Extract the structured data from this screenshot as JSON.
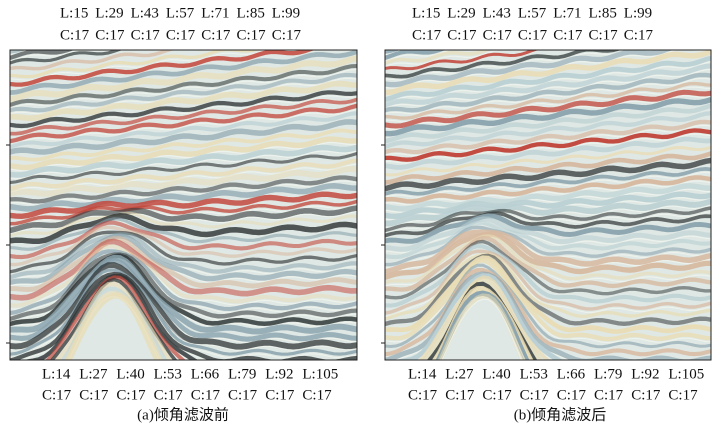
{
  "panels": [
    {
      "top_l_labels": [
        "L:15",
        "L:29",
        "L:43",
        "L:57",
        "L:71",
        "L:85",
        "L:99"
      ],
      "top_c_labels": [
        "C:17",
        "C:17",
        "C:17",
        "C:17",
        "C:17",
        "C:17",
        "C:17"
      ],
      "bottom_l_labels": [
        "L:14",
        "L:27",
        "L:40",
        "L:53",
        "L:66",
        "L:79",
        "L:92",
        "L:105"
      ],
      "bottom_c_labels": [
        "C:17",
        "C:17",
        "C:17",
        "C:17",
        "C:17",
        "C:17",
        "C:17",
        "C:17"
      ],
      "caption": "(a)倾角滤波前"
    },
    {
      "top_l_labels": [
        "L:15",
        "L:29",
        "L:43",
        "L:57",
        "L:71",
        "L:85",
        "L:99"
      ],
      "top_c_labels": [
        "C:17",
        "C:17",
        "C:17",
        "C:17",
        "C:17",
        "C:17",
        "C:17"
      ],
      "bottom_l_labels": [
        "L:14",
        "L:27",
        "L:40",
        "L:53",
        "L:66",
        "L:79",
        "L:92",
        "L:105"
      ],
      "bottom_c_labels": [
        "C:17",
        "C:17",
        "C:17",
        "C:17",
        "C:17",
        "C:17",
        "C:17",
        "C:17"
      ],
      "caption": "(b)倾角滤波后"
    }
  ]
}
